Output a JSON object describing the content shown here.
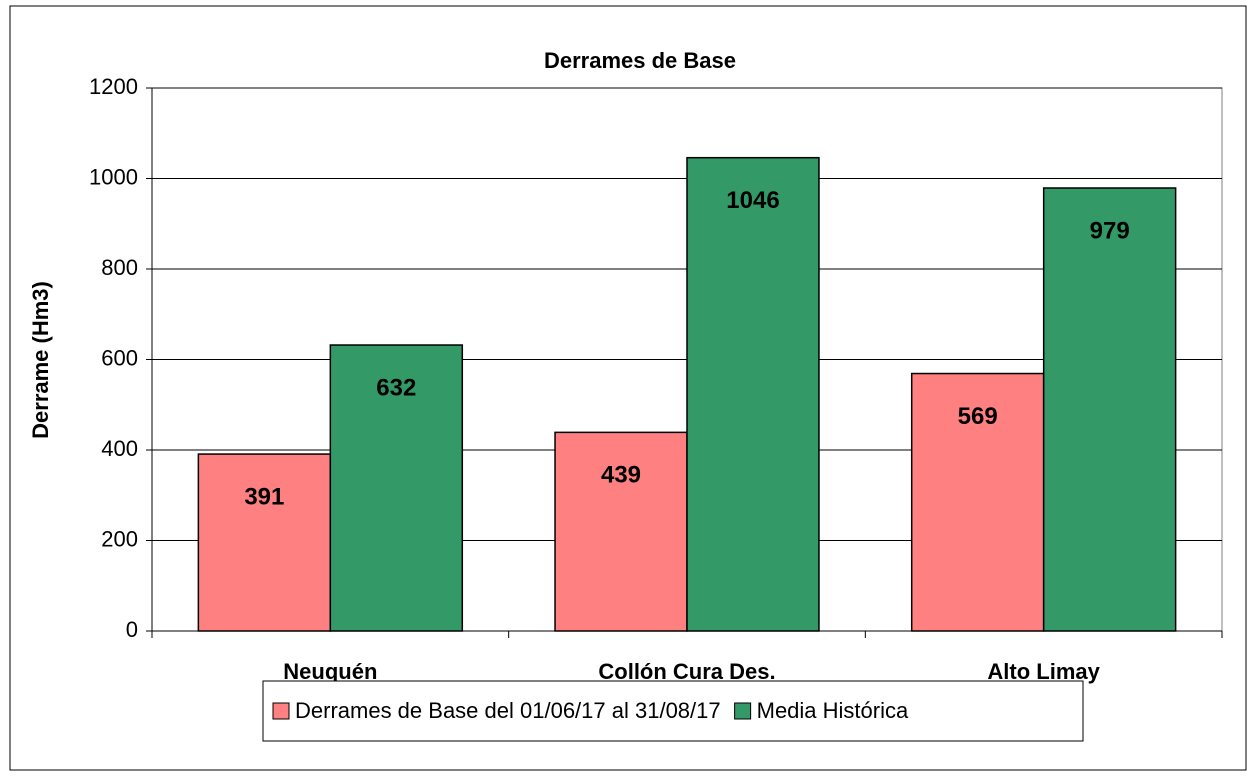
{
  "chart_data": {
    "type": "bar",
    "title": "Derrames de Base",
    "y_label": "Derrame (Hm3)",
    "categories": [
      "Neuquén",
      "Collón Cura Des.",
      "Alto Limay"
    ],
    "series": [
      {
        "name": "Derrames de Base del 01/06/17 al 31/08/17",
        "color": "#ff8080",
        "values": [
          391,
          439,
          569
        ]
      },
      {
        "name": "Media Histórica",
        "color": "#339966",
        "values": [
          632,
          1046,
          979
        ]
      }
    ],
    "ylim": [
      0,
      1200
    ],
    "yticks": [
      0,
      200,
      400,
      600,
      800,
      1000,
      1200
    ],
    "grid": true,
    "legend": "bottom"
  }
}
